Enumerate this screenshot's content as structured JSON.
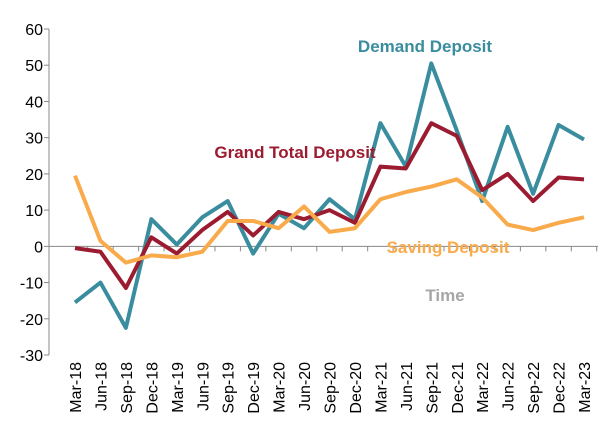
{
  "chart_data": {
    "type": "line",
    "x_label": "Time",
    "categories": [
      "Mar-18",
      "Jun-18",
      "Sep-18",
      "Dec-18",
      "Mar-19",
      "Jun-19",
      "Sep-19",
      "Dec-19",
      "Mar-20",
      "Jun-20",
      "Sep-20",
      "Dec-20",
      "Mar-21",
      "Jun-21",
      "Sep-21",
      "Dec-21",
      "Mar-22",
      "Jun-22",
      "Sep-22",
      "Dec-22",
      "Mar-23"
    ],
    "series": [
      {
        "name": "Demand Deposit",
        "color": "#3a8d9e",
        "values": [
          -15.5,
          -10,
          -22.5,
          7.5,
          0.5,
          8,
          12.5,
          -2,
          9,
          5,
          13,
          7.5,
          34,
          22,
          50.5,
          32,
          12.5,
          33,
          14.5,
          33.5,
          29.5
        ]
      },
      {
        "name": "Grand Total Deposit",
        "color": "#9b1b30",
        "values": [
          -0.5,
          -1.5,
          -11.5,
          2.5,
          -2,
          4.5,
          9.5,
          3,
          9.5,
          7.5,
          10,
          6.5,
          22,
          21.5,
          34,
          30.5,
          15.5,
          20,
          12.5,
          19,
          18.5
        ]
      },
      {
        "name": "Saving Deposit",
        "color": "#f9aa4b",
        "values": [
          19.5,
          1.5,
          -4.5,
          -2.5,
          -3,
          -1.5,
          7,
          7,
          5,
          11,
          4,
          5,
          13,
          15,
          16.5,
          18.5,
          13.5,
          6,
          4.5,
          6.5,
          8
        ]
      }
    ],
    "ylim": [
      -30,
      60
    ],
    "yticks": [
      -30,
      -20,
      -10,
      0,
      10,
      20,
      30,
      40,
      50,
      60
    ],
    "grid": false
  }
}
